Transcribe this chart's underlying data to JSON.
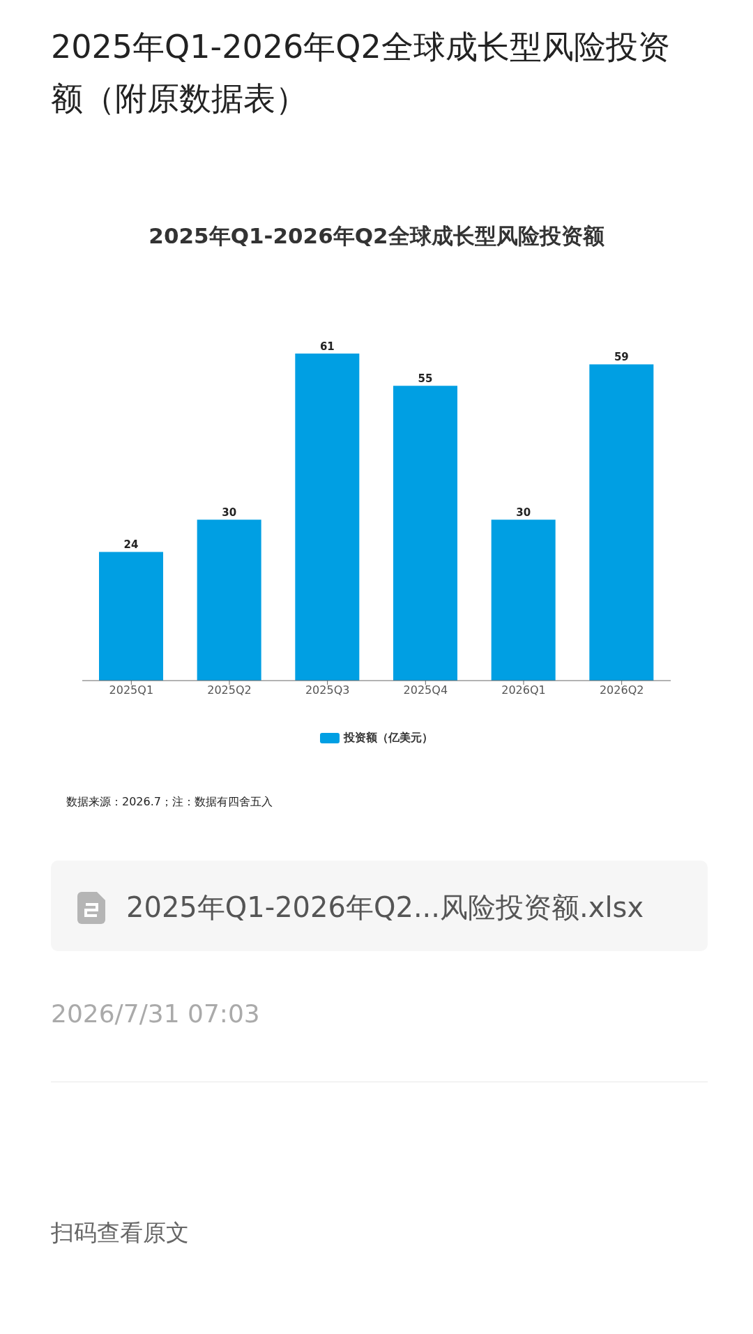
{
  "chart_data": {
    "type": "bar",
    "title": "2025年Q1-2026年Q2全球成长型风险投资额（附原数据表）",
    "subtitle": "2025年Q1-2026年Q2全球成长型风险投资额",
    "categories": [
      "2025Q1",
      "2025Q2",
      "2025Q3",
      "2025Q4",
      "2026Q1",
      "2026Q2"
    ],
    "series": [
      {
        "name": "投资额（亿美元）",
        "color": "#009fe3",
        "values": [
          24,
          30,
          61,
          55,
          30,
          59
        ]
      }
    ],
    "data_labels": true,
    "legend": "bottom",
    "grid": false,
    "annotations": [
      "数据来源：2026.7；注：数据有四舍五入",
      "2025年Q1-2026年Q2...风险投资额.xlsx",
      "2026/7/31 07:03",
      "扫码查看原文"
    ]
  }
}
